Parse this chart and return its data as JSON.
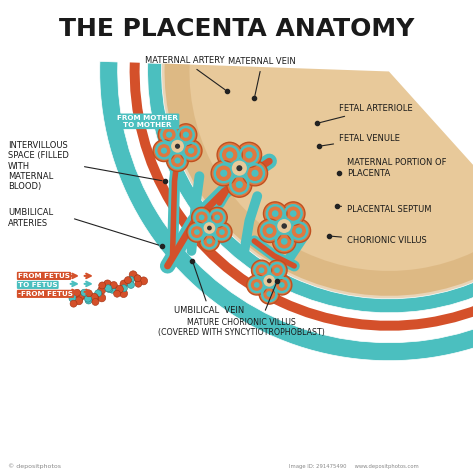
{
  "title": "THE PLACENTA ANATOMY",
  "title_fontsize": 18,
  "title_fontweight": "bold",
  "background_color": "#ffffff",
  "teal": "#4bbfbf",
  "red": "#d4502a",
  "orange": "#e07840",
  "peach": "#e8c99a",
  "tan": "#c8a870",
  "dark_tan": "#b8904a",
  "text_color": "#1a1a1a",
  "lfs": 6.0,
  "labels": {
    "maternal_artery": "MATERNAL ARTERY",
    "maternal_vein": "MATERNAL VEIN",
    "fetal_arteriole": "FETAL ARTERIOLE",
    "fetal_venule": "FETAL VENULE",
    "maternal_portion": "MATERNAL PORTION OF\nPLACENTA",
    "placental_septum": "PLACENTAL SEPTUM",
    "chorionic_villus": "CHORIONIC VILLUS",
    "intervillous": "INTERVILLOUS\nSPACE (FILLED\nWITH\nMATERNAL\nBLOOD)",
    "umbilical_arteries": "UMBILICAL\nARTERIES",
    "umbilical_vein": "UMBILICAL  VEIN",
    "mature_chorionic": "MATURE CHORIONIC VILLUS\n(COVERED WITH SYNCYTIOTROPHOBLAST)",
    "from_mother": "FROM MOTHER\nTO MOTHER",
    "from_fetus": "FROM FETUS",
    "to_fetus": "TO FETUS",
    "from_fetus2": "-FROM FETUS"
  }
}
